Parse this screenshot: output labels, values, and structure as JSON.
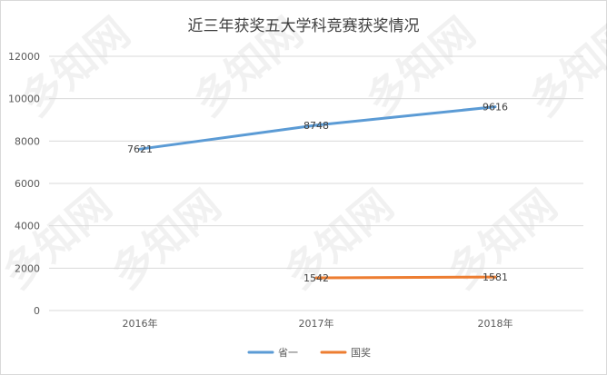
{
  "chart_data": {
    "type": "line",
    "title": "近三年获奖五大学科竞赛获奖情况",
    "categories": [
      "2016年",
      "2017年",
      "2018年"
    ],
    "series": [
      {
        "name": "省一",
        "color": "#5b9bd5",
        "values": [
          7621,
          8748,
          9616
        ]
      },
      {
        "name": "国奖",
        "color": "#ed7d31",
        "values": [
          null,
          1542,
          1581
        ]
      }
    ],
    "ylim": [
      0,
      12000
    ],
    "yticks": [
      0,
      2000,
      4000,
      6000,
      8000,
      10000,
      12000
    ],
    "grid": true,
    "legend": "bottom"
  },
  "watermark": "多知网"
}
